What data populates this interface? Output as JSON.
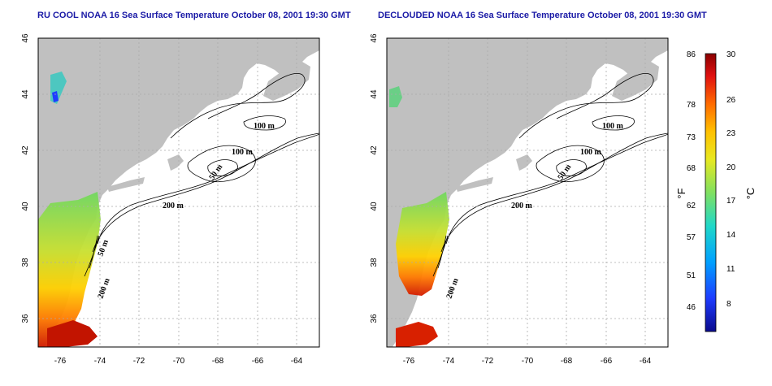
{
  "panels": [
    {
      "title": "RU COOL NOAA 16 Sea Surface Temperature October 08, 2001 19:30 GMT",
      "contour_labels": [
        "100 m",
        "100 m",
        "50 m",
        "200 m",
        "50 m",
        "200 m"
      ],
      "x_ticks": [
        "-76",
        "-74",
        "-72",
        "-70",
        "-68",
        "-66",
        "-64"
      ],
      "y_ticks": [
        "46",
        "44",
        "42",
        "40",
        "38",
        "36"
      ]
    },
    {
      "title": "DECLOUDED NOAA 16 Sea Surface Temperature October 08, 2001 19:30 GMT",
      "contour_labels": [
        "100 m",
        "100 m",
        "50 m",
        "200 m",
        "200 m"
      ],
      "x_ticks": [
        "-76",
        "-74",
        "-72",
        "-70",
        "-68",
        "-66",
        "-64"
      ],
      "y_ticks": [
        "46",
        "44",
        "42",
        "40",
        "38",
        "36"
      ]
    }
  ],
  "colorbar": {
    "unit_f": "°F",
    "unit_c": "°C",
    "f_ticks": [
      "86",
      "78",
      "73",
      "68",
      "62",
      "57",
      "51",
      "46"
    ],
    "c_ticks": [
      "30",
      "26",
      "23",
      "20",
      "17",
      "14",
      "11",
      "8"
    ]
  },
  "colors": {
    "land": "#c0c0c0",
    "title": "#1a1aa6",
    "grid": "#aaaaaa"
  }
}
